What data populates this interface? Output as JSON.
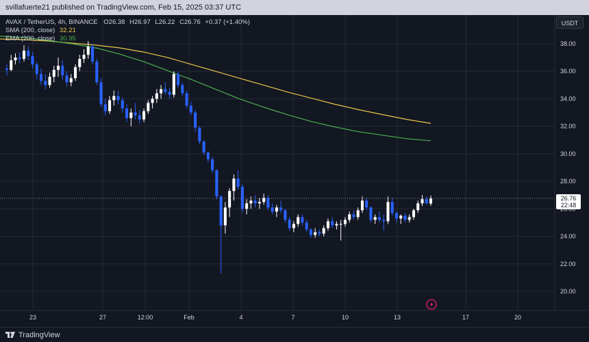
{
  "header": {
    "publisher_line": "svillafuerte21 published on TradingView.com, Feb 15, 2025 03:37 UTC"
  },
  "legend": {
    "symbol": "AVAX / TetherUS, 4h, BINANCE",
    "open_label": "O",
    "open": "26.38",
    "high_label": "H",
    "high": "26.97",
    "low_label": "L",
    "low": "26.22",
    "close_label": "C",
    "close": "26.76",
    "change": "+0.37 (+1.40%)",
    "sma_label": "SMA (200, close)",
    "sma_value": "32.21",
    "ema_label": "EMA (200, close)",
    "ema_value": "30.95"
  },
  "price_axis": {
    "currency": "USDT",
    "ticks": [
      "38.00",
      "36.00",
      "34.00",
      "32.00",
      "30.00",
      "28.00",
      "26.00",
      "24.00",
      "22.00",
      "20.00"
    ],
    "last_price": "26.76",
    "countdown": "22:48"
  },
  "time_axis": {
    "ticks": [
      "23",
      "27",
      "12:00",
      "Feb",
      "4",
      "7",
      "10",
      "13",
      "17",
      "20"
    ]
  },
  "footer": {
    "brand": "TradingView"
  },
  "colors": {
    "up": "#ffffff",
    "down": "#2962ff",
    "sma": "#e8c547",
    "ema": "#4caf50",
    "grid": "#252a36",
    "background": "#131722"
  },
  "icons": {
    "replay": "lightning-bolt-icon"
  },
  "chart_data": {
    "type": "candlestick",
    "symbol": "AVAX/USDT",
    "interval": "4h",
    "y_range": [
      19.5,
      39.5
    ],
    "candles": [
      [
        36.2,
        36.5,
        35.7,
        36.1
      ],
      [
        36.1,
        37.2,
        36.0,
        36.8
      ],
      [
        36.8,
        37.3,
        36.5,
        37.0
      ],
      [
        37.0,
        37.4,
        36.6,
        36.9
      ],
      [
        36.9,
        37.9,
        36.7,
        37.5
      ],
      [
        37.5,
        37.8,
        36.8,
        37.1
      ],
      [
        37.1,
        37.4,
        36.2,
        36.5
      ],
      [
        36.5,
        36.7,
        35.4,
        35.8
      ],
      [
        35.8,
        36.2,
        35.0,
        35.3
      ],
      [
        35.3,
        35.8,
        34.7,
        35.0
      ],
      [
        35.0,
        35.9,
        34.8,
        35.6
      ],
      [
        35.6,
        36.4,
        35.2,
        36.1
      ],
      [
        36.1,
        37.0,
        35.6,
        36.4
      ],
      [
        36.4,
        36.8,
        35.4,
        35.7
      ],
      [
        35.7,
        36.0,
        34.9,
        35.2
      ],
      [
        35.2,
        35.8,
        34.9,
        35.5
      ],
      [
        35.5,
        36.5,
        35.3,
        36.3
      ],
      [
        36.3,
        37.2,
        36.0,
        36.9
      ],
      [
        36.9,
        37.6,
        36.6,
        37.2
      ],
      [
        37.2,
        38.2,
        36.9,
        37.8
      ],
      [
        37.8,
        38.0,
        36.5,
        36.7
      ],
      [
        36.7,
        36.9,
        35.0,
        35.2
      ],
      [
        35.2,
        35.5,
        33.4,
        33.6
      ],
      [
        33.6,
        34.0,
        32.8,
        33.1
      ],
      [
        33.1,
        34.2,
        32.9,
        33.9
      ],
      [
        33.9,
        34.6,
        33.5,
        34.2
      ],
      [
        34.2,
        34.6,
        33.6,
        33.9
      ],
      [
        33.9,
        34.1,
        33.0,
        33.3
      ],
      [
        33.3,
        33.6,
        32.3,
        32.6
      ],
      [
        32.6,
        33.3,
        32.0,
        33.0
      ],
      [
        33.0,
        33.7,
        32.5,
        32.8
      ],
      [
        32.8,
        33.2,
        32.2,
        32.5
      ],
      [
        32.5,
        33.3,
        32.3,
        33.1
      ],
      [
        33.1,
        33.9,
        32.9,
        33.7
      ],
      [
        33.7,
        34.2,
        33.3,
        34.0
      ],
      [
        34.0,
        34.7,
        33.7,
        34.4
      ],
      [
        34.4,
        35.0,
        34.0,
        34.7
      ],
      [
        34.7,
        35.2,
        34.3,
        34.5
      ],
      [
        34.5,
        34.8,
        34.0,
        34.3
      ],
      [
        34.3,
        36.0,
        34.1,
        35.8
      ],
      [
        35.8,
        36.0,
        34.8,
        35.0
      ],
      [
        35.0,
        35.2,
        34.2,
        34.4
      ],
      [
        34.4,
        34.6,
        33.3,
        33.5
      ],
      [
        33.5,
        33.8,
        32.8,
        33.0
      ],
      [
        33.0,
        33.2,
        31.6,
        31.9
      ],
      [
        31.9,
        32.0,
        30.7,
        30.9
      ],
      [
        30.9,
        31.0,
        29.9,
        30.1
      ],
      [
        30.1,
        30.2,
        29.4,
        29.6
      ],
      [
        29.6,
        29.8,
        28.6,
        28.8
      ],
      [
        28.8,
        28.9,
        26.7,
        26.9
      ],
      [
        26.9,
        27.0,
        21.3,
        24.8
      ],
      [
        24.8,
        26.5,
        24.2,
        26.1
      ],
      [
        26.1,
        27.5,
        25.4,
        27.3
      ],
      [
        27.3,
        28.5,
        26.6,
        28.2
      ],
      [
        28.2,
        28.8,
        27.4,
        27.6
      ],
      [
        27.6,
        27.8,
        25.7,
        26.0
      ],
      [
        26.0,
        26.7,
        25.6,
        26.4
      ],
      [
        26.4,
        26.9,
        26.0,
        26.6
      ],
      [
        26.6,
        27.0,
        26.1,
        26.4
      ],
      [
        26.4,
        26.8,
        26.0,
        26.5
      ],
      [
        26.5,
        27.1,
        26.3,
        26.8
      ],
      [
        26.8,
        27.0,
        25.9,
        26.1
      ],
      [
        26.1,
        26.4,
        25.6,
        25.8
      ],
      [
        25.8,
        26.3,
        25.4,
        26.1
      ],
      [
        26.1,
        26.6,
        25.7,
        25.9
      ],
      [
        25.9,
        26.0,
        25.0,
        25.2
      ],
      [
        25.2,
        25.4,
        24.4,
        24.6
      ],
      [
        24.6,
        25.1,
        24.3,
        24.9
      ],
      [
        24.9,
        25.6,
        24.7,
        25.4
      ],
      [
        25.4,
        25.6,
        24.8,
        25.0
      ],
      [
        25.0,
        25.2,
        24.3,
        24.5
      ],
      [
        24.5,
        24.6,
        23.9,
        24.1
      ],
      [
        24.1,
        24.6,
        23.9,
        24.3
      ],
      [
        24.3,
        24.5,
        24.0,
        24.2
      ],
      [
        24.2,
        24.8,
        24.0,
        24.6
      ],
      [
        24.6,
        25.3,
        24.4,
        25.1
      ],
      [
        25.1,
        25.4,
        24.6,
        24.8
      ],
      [
        24.8,
        25.1,
        24.5,
        24.9
      ],
      [
        24.9,
        25.2,
        23.7,
        24.9
      ],
      [
        24.9,
        25.4,
        24.7,
        25.2
      ],
      [
        25.2,
        25.8,
        25.0,
        25.6
      ],
      [
        25.6,
        25.9,
        25.2,
        25.4
      ],
      [
        25.4,
        26.1,
        25.2,
        25.9
      ],
      [
        25.9,
        26.9,
        25.7,
        26.6
      ],
      [
        26.6,
        26.8,
        25.9,
        26.1
      ],
      [
        26.1,
        26.2,
        25.0,
        25.2
      ],
      [
        25.2,
        25.6,
        24.9,
        25.4
      ],
      [
        25.4,
        25.8,
        25.0,
        25.2
      ],
      [
        25.2,
        25.6,
        24.4,
        25.1
      ],
      [
        25.1,
        26.9,
        24.9,
        26.5
      ],
      [
        26.5,
        26.8,
        25.5,
        25.7
      ],
      [
        25.7,
        25.8,
        25.0,
        25.3
      ],
      [
        25.3,
        25.6,
        24.9,
        25.5
      ],
      [
        25.5,
        25.7,
        25.0,
        25.2
      ],
      [
        25.2,
        25.6,
        25.0,
        25.4
      ],
      [
        25.4,
        26.0,
        25.2,
        25.9
      ],
      [
        25.9,
        26.6,
        25.7,
        26.4
      ],
      [
        26.4,
        27.0,
        26.2,
        26.7
      ],
      [
        26.7,
        26.9,
        26.3,
        26.4
      ],
      [
        26.38,
        26.97,
        26.22,
        26.76
      ]
    ],
    "sma_200": [
      38.35,
      38.3,
      38.2,
      38.05,
      37.9,
      37.7,
      37.4,
      37.0,
      36.5,
      36.0,
      35.5,
      35.0,
      34.5,
      34.05,
      33.6,
      33.2,
      32.85,
      32.5,
      32.21
    ],
    "ema_200": [
      38.55,
      38.45,
      38.25,
      38.0,
      37.7,
      37.25,
      36.7,
      36.05,
      35.4,
      34.7,
      34.0,
      33.4,
      32.85,
      32.35,
      31.95,
      31.6,
      31.35,
      31.1,
      30.95
    ],
    "xlabel": "",
    "ylabel": ""
  }
}
